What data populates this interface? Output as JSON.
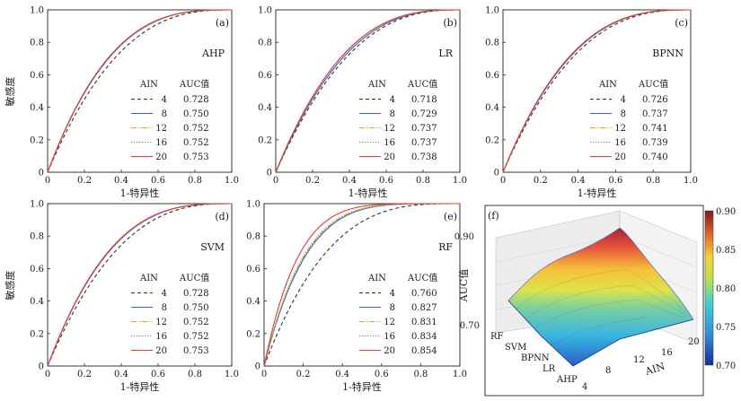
{
  "colors": {
    "4": "#333333",
    "8": "#3a5fc4",
    "12": "#e0a020",
    "16": "#4aa34a",
    "20": "#e83a3a"
  },
  "legend_header": {
    "ain": "AIN",
    "auc": "AUC值"
  },
  "chart_data": [
    {
      "type": "line",
      "panel": "(a)",
      "model": "AHP",
      "xlabel": "1-特异性",
      "ylabel": "敏感度",
      "xlim": [
        0,
        1
      ],
      "ylim": [
        0,
        1
      ],
      "ticks": [
        "0",
        "0.2",
        "0.4",
        "0.6",
        "0.8",
        "1.0"
      ],
      "series": [
        {
          "name": "4",
          "auc": "0.728",
          "style": "dashed"
        },
        {
          "name": "8",
          "auc": "0.750",
          "style": "solid"
        },
        {
          "name": "12",
          "auc": "0.752",
          "style": "dashdot"
        },
        {
          "name": "16",
          "auc": "0.752",
          "style": "dotted"
        },
        {
          "name": "20",
          "auc": "0.753",
          "style": "solid"
        }
      ]
    },
    {
      "type": "line",
      "panel": "(b)",
      "model": "LR",
      "xlabel": "1-特异性",
      "ylabel": "",
      "xlim": [
        0,
        1
      ],
      "ylim": [
        0,
        1
      ],
      "ticks": [
        "0",
        "0.2",
        "0.4",
        "0.6",
        "0.8",
        "1.0"
      ],
      "series": [
        {
          "name": "4",
          "auc": "0.718",
          "style": "dashed"
        },
        {
          "name": "8",
          "auc": "0.729",
          "style": "solid"
        },
        {
          "name": "12",
          "auc": "0.737",
          "style": "dashdot"
        },
        {
          "name": "16",
          "auc": "0.737",
          "style": "dotted"
        },
        {
          "name": "20",
          "auc": "0.738",
          "style": "solid"
        }
      ]
    },
    {
      "type": "line",
      "panel": "(c)",
      "model": "BPNN",
      "xlabel": "1-特异性",
      "ylabel": "",
      "xlim": [
        0,
        1
      ],
      "ylim": [
        0,
        1
      ],
      "ticks": [
        "0",
        "0.2",
        "0.4",
        "0.6",
        "0.8",
        "1.0"
      ],
      "series": [
        {
          "name": "4",
          "auc": "0.726",
          "style": "dashed"
        },
        {
          "name": "8",
          "auc": "0.737",
          "style": "solid"
        },
        {
          "name": "12",
          "auc": "0.741",
          "style": "dashdot"
        },
        {
          "name": "16",
          "auc": "0.739",
          "style": "dotted"
        },
        {
          "name": "20",
          "auc": "0.740",
          "style": "solid"
        }
      ]
    },
    {
      "type": "line",
      "panel": "(d)",
      "model": "SVM",
      "xlabel": "1-特异性",
      "ylabel": "敏感度",
      "xlim": [
        0,
        1
      ],
      "ylim": [
        0,
        1
      ],
      "ticks": [
        "0",
        "0.2",
        "0.4",
        "0.6",
        "0.8",
        "1.0"
      ],
      "series": [
        {
          "name": "4",
          "auc": "0.728",
          "style": "dashed"
        },
        {
          "name": "8",
          "auc": "0.750",
          "style": "solid"
        },
        {
          "name": "12",
          "auc": "0.752",
          "style": "dashdot"
        },
        {
          "name": "16",
          "auc": "0.752",
          "style": "dotted"
        },
        {
          "name": "20",
          "auc": "0.753",
          "style": "solid"
        }
      ]
    },
    {
      "type": "line",
      "panel": "(e)",
      "model": "RF",
      "xlabel": "1-特异性",
      "ylabel": "",
      "xlim": [
        0,
        1
      ],
      "ylim": [
        0,
        1
      ],
      "ticks": [
        "0",
        "0.2",
        "0.4",
        "0.6",
        "0.8",
        "1.0"
      ],
      "series": [
        {
          "name": "4",
          "auc": "0.760",
          "style": "dashed"
        },
        {
          "name": "8",
          "auc": "0.827",
          "style": "solid"
        },
        {
          "name": "12",
          "auc": "0.831",
          "style": "dashdot"
        },
        {
          "name": "16",
          "auc": "0.834",
          "style": "dotted"
        },
        {
          "name": "20",
          "auc": "0.854",
          "style": "solid"
        }
      ]
    },
    {
      "type": "surface3d",
      "panel": "(f)",
      "xlabel": "AIN",
      "zlabel": "AUC值",
      "x": [
        4,
        8,
        12,
        16,
        20
      ],
      "y": [
        "AHP",
        "LR",
        "BPNN",
        "SVM",
        "RF"
      ],
      "x_tick_labels": [
        "4",
        "8",
        "12",
        "16",
        "20"
      ],
      "y_tick_labels": [
        "AHP",
        "LR",
        "BPNN",
        "SVM",
        "RF"
      ],
      "z_tick_labels": [
        "0.70",
        "0.75",
        "0.80",
        "0.85",
        "0.90"
      ],
      "z": [
        [
          0.728,
          0.75,
          0.752,
          0.752,
          0.753
        ],
        [
          0.718,
          0.729,
          0.737,
          0.737,
          0.738
        ],
        [
          0.726,
          0.737,
          0.741,
          0.739,
          0.74
        ],
        [
          0.728,
          0.75,
          0.752,
          0.752,
          0.753
        ],
        [
          0.76,
          0.827,
          0.831,
          0.834,
          0.854
        ]
      ],
      "colorbar": {
        "min": 0.7,
        "max": 0.9,
        "ticks": [
          "0.90",
          "0.85",
          "0.80",
          "0.75",
          "0.70"
        ]
      }
    }
  ]
}
